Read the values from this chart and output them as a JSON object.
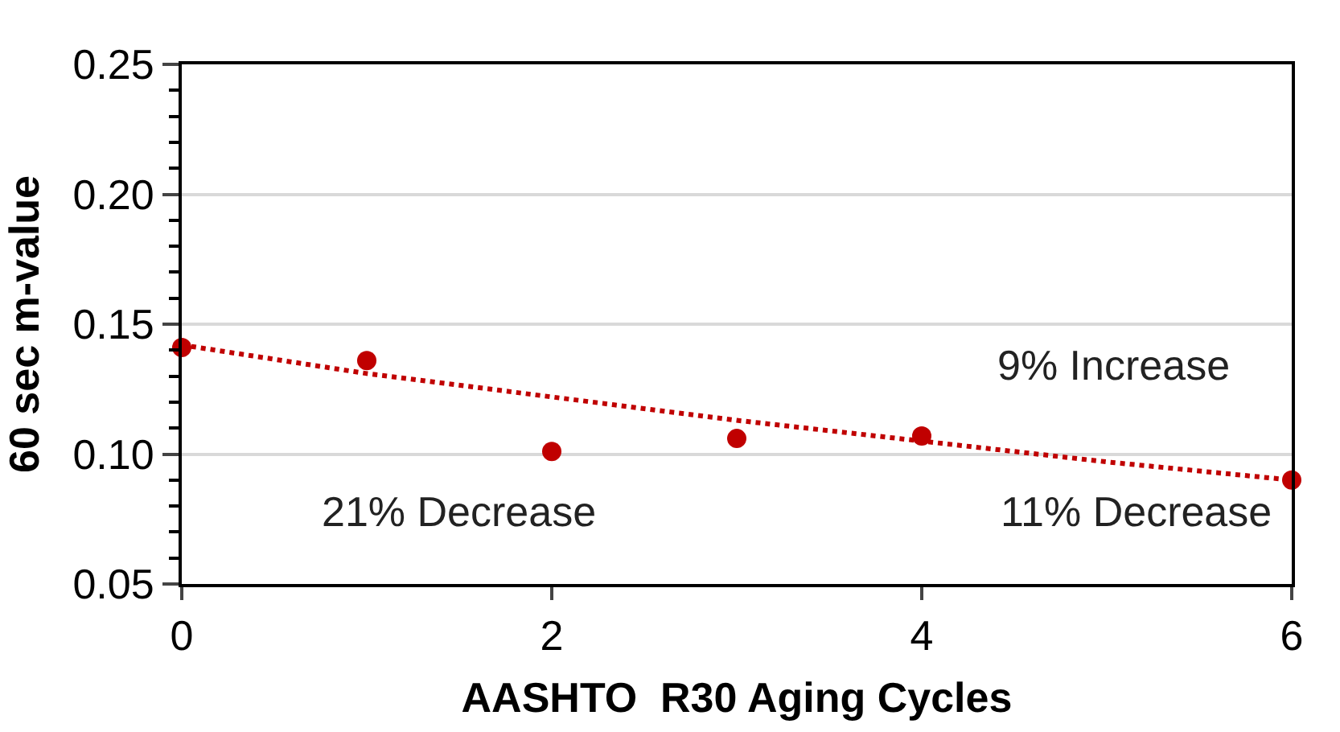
{
  "chart_data": {
    "type": "scatter",
    "xlabel": "AASHTO  R30 Aging Cycles",
    "ylabel": "60 sec m-value",
    "xlim": [
      0,
      6
    ],
    "xticks": [
      0,
      2,
      4,
      6
    ],
    "ylim": [
      0.05,
      0.25
    ],
    "yticks": [
      0.05,
      {
        "value": 0.1,
        "label": "0.10"
      },
      0.15,
      {
        "value": 0.2,
        "label": "0.20"
      },
      0.25
    ],
    "grid": "y",
    "marker": "circle",
    "series": [
      {
        "color": "#c00000",
        "x": [
          0,
          1,
          2,
          3,
          4,
          6
        ],
        "values": [
          0.141,
          0.136,
          0.101,
          0.106,
          0.107,
          0.09
        ]
      },
      {
        "type": "line",
        "line_style": "dotted",
        "marker": "none",
        "color": "#c00000",
        "x": [
          0,
          1,
          2,
          3,
          4,
          5,
          6
        ],
        "values": [
          0.142,
          0.131,
          0.122,
          0.113,
          0.105,
          0.097,
          0.09
        ]
      }
    ],
    "annotations": [
      "21% Decrease",
      "11% Decrease",
      "9% Increase"
    ]
  }
}
